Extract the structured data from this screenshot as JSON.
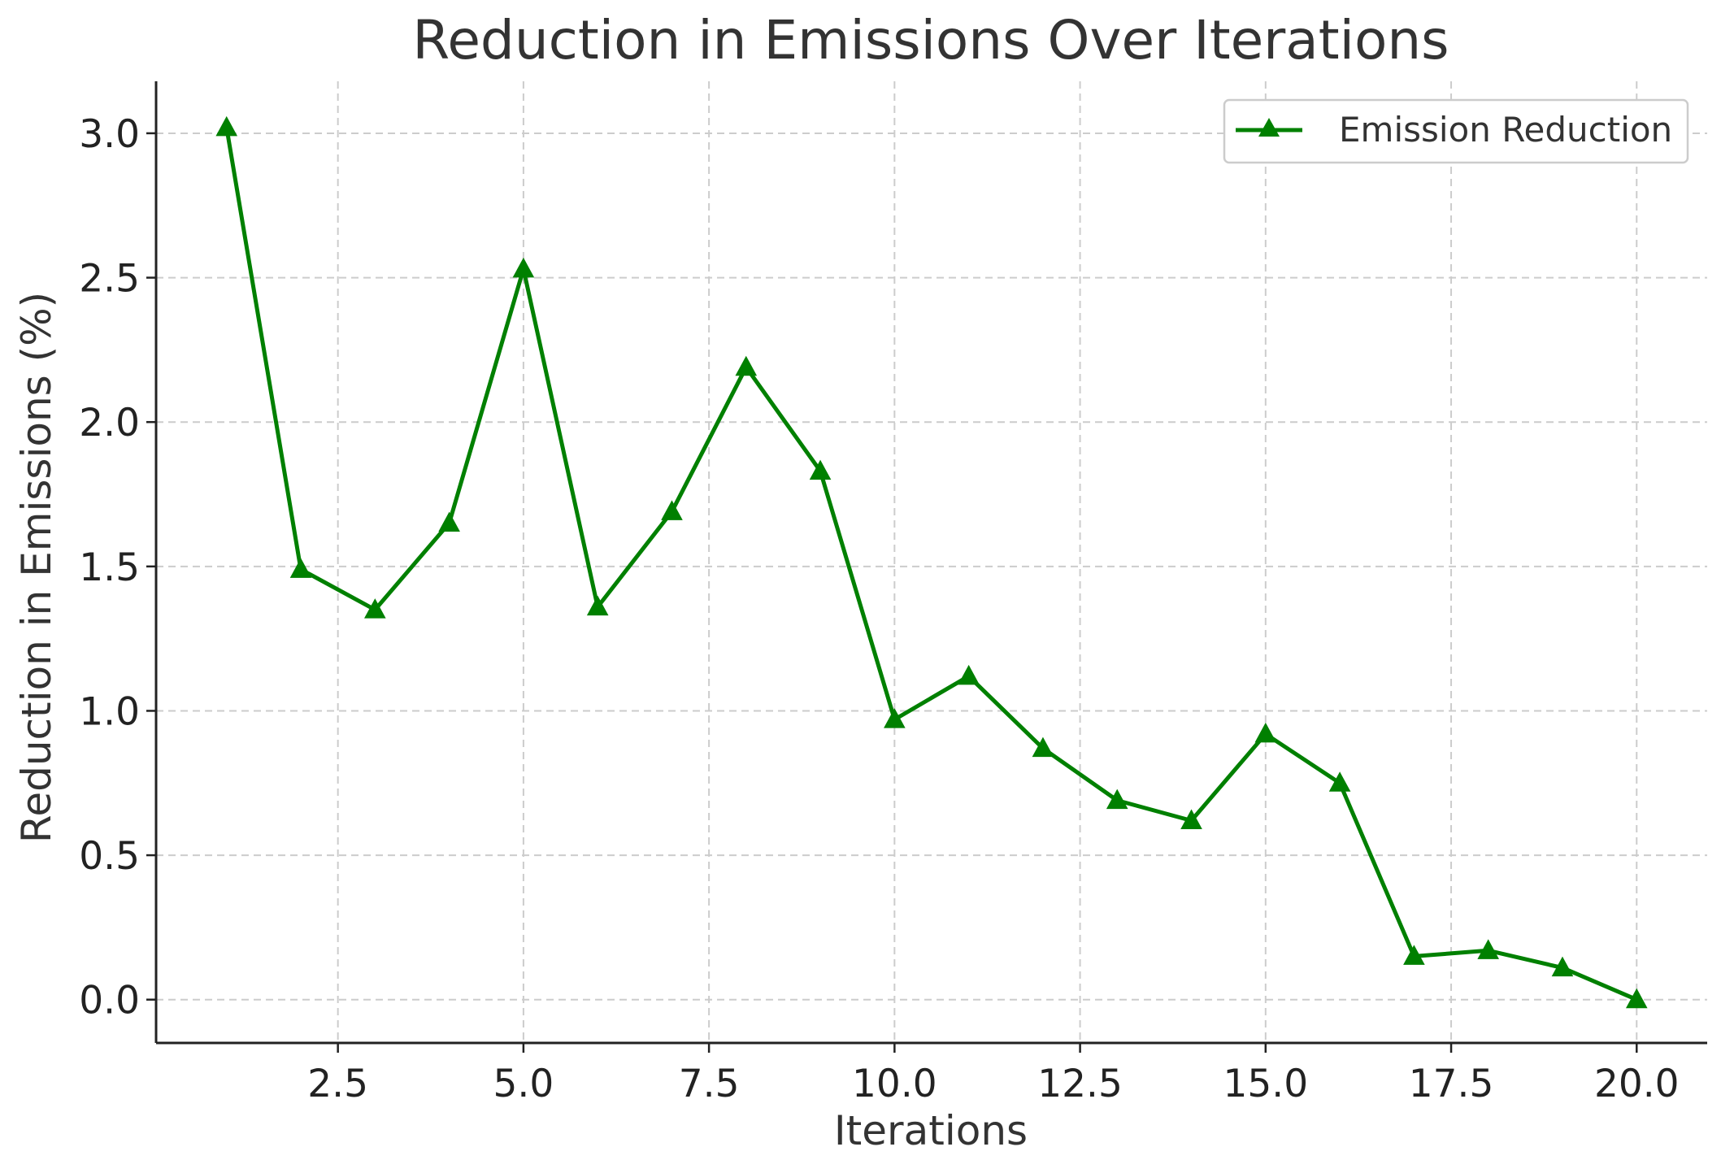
{
  "chart_data": {
    "type": "line",
    "title": "Reduction in Emissions Over Iterations",
    "xlabel": "Iterations",
    "ylabel": "Reduction in Emissions (%)",
    "xlim": [
      0.05,
      20.95
    ],
    "ylim": [
      -0.15,
      3.18
    ],
    "x_ticks": [
      2.5,
      5.0,
      7.5,
      10.0,
      12.5,
      15.0,
      17.5,
      20.0
    ],
    "x_tick_labels": [
      "2.5",
      "5.0",
      "7.5",
      "10.0",
      "12.5",
      "15.0",
      "17.5",
      "20.0"
    ],
    "y_ticks": [
      0.0,
      0.5,
      1.0,
      1.5,
      2.0,
      2.5,
      3.0
    ],
    "y_tick_labels": [
      "0.0",
      "0.5",
      "1.0",
      "1.5",
      "2.0",
      "2.5",
      "3.0"
    ],
    "grid": true,
    "legend_position": "top-right",
    "series": [
      {
        "name": "Emission Reduction",
        "color": "#008000",
        "marker": "triangle-up",
        "x": [
          1,
          2,
          3,
          4,
          5,
          6,
          7,
          8,
          9,
          10,
          11,
          12,
          13,
          14,
          15,
          16,
          17,
          18,
          19,
          20
        ],
        "values": [
          3.02,
          1.49,
          1.35,
          1.65,
          2.53,
          1.36,
          1.69,
          2.19,
          1.83,
          0.97,
          1.12,
          0.87,
          0.69,
          0.62,
          0.92,
          0.75,
          0.15,
          0.17,
          0.11,
          0.0
        ]
      }
    ]
  }
}
